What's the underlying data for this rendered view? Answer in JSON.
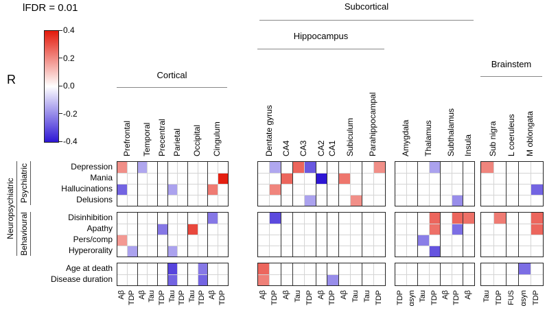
{
  "title": "lFDR = 0.01",
  "colorbar": {
    "label": "R",
    "ticks": [
      "0.4",
      "0.2",
      "0.0",
      "-0.2",
      "-0.4"
    ],
    "positive_color": "#e31a0c",
    "zero_color": "#ffffff",
    "negative_color": "#2d16d4"
  },
  "headers": {
    "cortical": "Cortical",
    "subcortical": "Subcortical",
    "hippocampus": "Hippocampus",
    "brainstem": "Brainstem"
  },
  "chart_data": {
    "type": "heatmap",
    "title": "lFDR = 0.01",
    "value_label": "R",
    "color_scale": {
      "min": -0.4,
      "max": 0.4,
      "negative": "#2d16d4",
      "zero": "#ffffff",
      "positive": "#e31a0c"
    },
    "row_supergroup": "Neuropsychiatric",
    "row_groups": [
      {
        "label": "Psychiatric",
        "rows": [
          "Depression",
          "Mania",
          "Hallucinations",
          "Delusions"
        ]
      },
      {
        "label": "Behavioural",
        "rows": [
          "Disinhibition",
          "Apathy",
          "Pers/comp",
          "Hyperorality"
        ]
      },
      {
        "label": "",
        "rows": [
          "Age at death",
          "Disease duration"
        ]
      }
    ],
    "col_blocks": [
      {
        "group_header": "Cortical",
        "regions": [
          {
            "name": "Prefrontal",
            "cols": [
              "Aβ",
              "TDP"
            ]
          },
          {
            "name": "Temporal",
            "cols": [
              "Aβ",
              "Tau"
            ]
          },
          {
            "name": "Precentral",
            "cols": [
              "TDP"
            ]
          },
          {
            "name": "Parietal",
            "cols": [
              "Tau",
              "TDP"
            ]
          },
          {
            "name": "Occipital",
            "cols": [
              "Tau",
              "TDP"
            ]
          },
          {
            "name": "Cingulum",
            "cols": [
              "Aβ",
              "TDP"
            ]
          }
        ]
      },
      {
        "group_header": "Subcortical / Hippocampus",
        "regions": [
          {
            "name": "Dentate gyrus",
            "cols": [
              "Aβ",
              "TDP"
            ]
          },
          {
            "name": "CA4",
            "cols": [
              "Aβ"
            ]
          },
          {
            "name": "CA3",
            "cols": [
              "Tau",
              "TDP"
            ]
          },
          {
            "name": "CA2",
            "cols": [
              "Aβ"
            ]
          },
          {
            "name": "CA1",
            "cols": [
              "TDP"
            ]
          },
          {
            "name": "Subiculum",
            "cols": [
              "Aβ",
              "Tau"
            ]
          },
          {
            "name": "Parahippocampal",
            "cols": [
              "Tau",
              "TDP"
            ]
          }
        ]
      },
      {
        "group_header": "Subcortical",
        "regions": [
          {
            "name": "Amygdala",
            "cols": [
              "TDP",
              "αsyn"
            ]
          },
          {
            "name": "Thalamus",
            "cols": [
              "Tau",
              "TDP"
            ]
          },
          {
            "name": "Subthalamus",
            "cols": [
              "Aβ",
              "TDP"
            ]
          },
          {
            "name": "Insula",
            "cols": [
              "Aβ"
            ]
          }
        ]
      },
      {
        "group_header": "Brainstem",
        "regions": [
          {
            "name": "Sub nigra",
            "cols": [
              "Tau",
              "TDP"
            ]
          },
          {
            "name": "L coeruleus",
            "cols": [
              "FUS"
            ]
          },
          {
            "name": "M oblongata",
            "cols": [
              "αsyn",
              "TDP"
            ]
          }
        ]
      }
    ],
    "cells_format": "[block_index, row_index(0=Depression..9=Disease duration), col_index_in_block, R]",
    "cells": [
      [
        0,
        0,
        0,
        0.22
      ],
      [
        0,
        0,
        2,
        -0.17
      ],
      [
        0,
        1,
        10,
        0.44
      ],
      [
        0,
        2,
        0,
        -0.3
      ],
      [
        0,
        2,
        5,
        -0.18
      ],
      [
        0,
        2,
        9,
        0.26
      ],
      [
        0,
        4,
        9,
        -0.26
      ],
      [
        0,
        5,
        4,
        -0.26
      ],
      [
        0,
        5,
        7,
        0.36
      ],
      [
        0,
        6,
        0,
        0.2
      ],
      [
        0,
        7,
        1,
        -0.18
      ],
      [
        0,
        7,
        5,
        -0.18
      ],
      [
        0,
        8,
        5,
        -0.36
      ],
      [
        0,
        8,
        8,
        -0.26
      ],
      [
        0,
        9,
        5,
        -0.3
      ],
      [
        0,
        9,
        8,
        -0.3
      ],
      [
        1,
        0,
        1,
        -0.17
      ],
      [
        1,
        0,
        3,
        0.3
      ],
      [
        1,
        0,
        4,
        -0.32
      ],
      [
        1,
        0,
        10,
        0.22
      ],
      [
        1,
        1,
        2,
        0.3
      ],
      [
        1,
        1,
        5,
        -0.45
      ],
      [
        1,
        1,
        7,
        0.27
      ],
      [
        1,
        2,
        1,
        0.24
      ],
      [
        1,
        3,
        4,
        -0.18
      ],
      [
        1,
        3,
        8,
        0.22
      ],
      [
        1,
        4,
        1,
        -0.35
      ],
      [
        1,
        8,
        0,
        0.3
      ],
      [
        1,
        9,
        0,
        0.25
      ],
      [
        1,
        9,
        6,
        -0.22
      ],
      [
        2,
        0,
        3,
        -0.18
      ],
      [
        2,
        3,
        5,
        -0.22
      ],
      [
        2,
        4,
        3,
        0.3
      ],
      [
        2,
        4,
        5,
        0.3
      ],
      [
        2,
        4,
        6,
        0.28
      ],
      [
        2,
        5,
        3,
        0.28
      ],
      [
        2,
        5,
        5,
        -0.28
      ],
      [
        2,
        6,
        2,
        -0.25
      ],
      [
        2,
        7,
        3,
        -0.33
      ],
      [
        3,
        0,
        0,
        0.24
      ],
      [
        3,
        2,
        4,
        -0.3
      ],
      [
        3,
        4,
        1,
        0.26
      ],
      [
        3,
        4,
        4,
        0.3
      ],
      [
        3,
        5,
        4,
        0.3
      ],
      [
        3,
        8,
        3,
        -0.28
      ]
    ]
  }
}
